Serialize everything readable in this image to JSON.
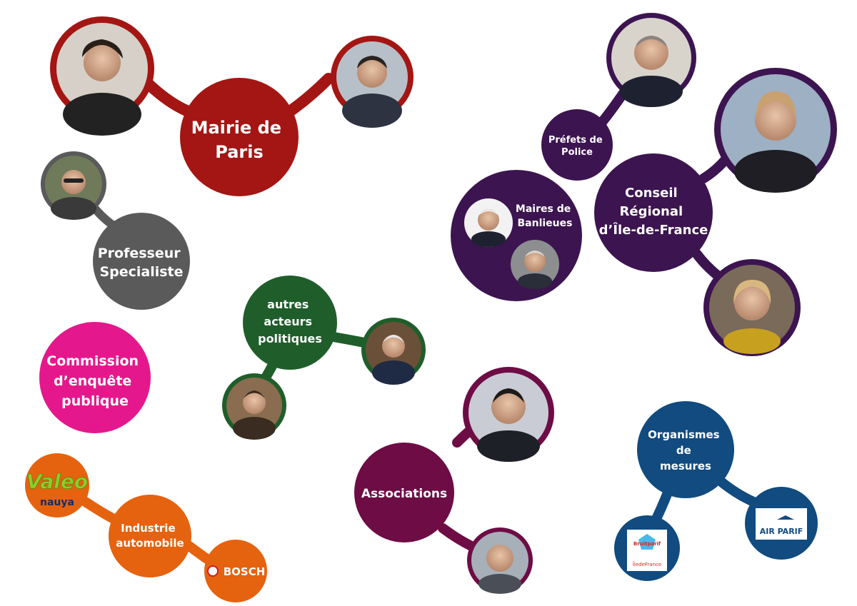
{
  "colors": {
    "mairie": "#a31613",
    "professeur": "#5a5a5a",
    "commission": "#e4188c",
    "industrie": "#e5620f",
    "autres": "#1f5e2a",
    "associations": "#6e0c45",
    "organismes": "#114b7f",
    "ile_de_france": "#3c1450"
  },
  "nodes": {
    "mairie": {
      "lines": [
        "Mairie de",
        "Paris"
      ]
    },
    "professeur": {
      "lines": [
        "Professeur",
        "Specialiste"
      ]
    },
    "commission": {
      "lines": [
        "Commission",
        "d’enquête",
        "publique"
      ]
    },
    "industrie": {
      "lines": [
        "Industrie",
        "automobile"
      ]
    },
    "autres": {
      "lines": [
        "autres",
        "acteurs",
        "politiques"
      ]
    },
    "associations": {
      "lines": [
        "Associations"
      ]
    },
    "organismes": {
      "lines": [
        "Organismes",
        "de",
        "mesures"
      ]
    },
    "prefets": {
      "lines": [
        "Préfets de",
        "Police"
      ]
    },
    "maires": {
      "lines": [
        "Maires de",
        "Banlieues"
      ]
    },
    "conseil": {
      "lines": [
        "Conseil",
        "Régional",
        "d’Île-de-France"
      ]
    }
  },
  "logos": {
    "valeo": "Valeo",
    "nauya": "nauya",
    "bosch": "BOSCH",
    "airparif": "AIR PARIF",
    "bruitparif": "Bruitparif",
    "iledefrance": "ÎledeFrance"
  }
}
